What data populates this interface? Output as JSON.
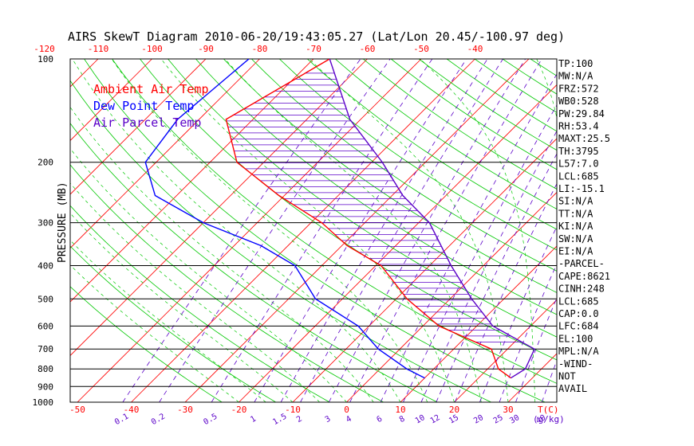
{
  "chart_data": {
    "type": "line",
    "title": "AIRS SkewT Diagram 2010-06-20/19:43:05.27 (Lat/Lon 20.45/-100.97 deg)",
    "ylabel": "PRESSURE (MB)",
    "xlabel_right": "T(C)",
    "mixing_ratio_unit_label": "(g/kg)",
    "y_scale": "log",
    "ylim": [
      1000,
      100
    ],
    "xlim_bottom": [
      -50,
      30
    ],
    "top_ticks": [
      "-120",
      "-110",
      "-100",
      "-90",
      "-80",
      "-70",
      "-60",
      "-50",
      "-40"
    ],
    "top_tick_values": [
      -120,
      -110,
      -100,
      -90,
      -80,
      -70,
      -60,
      -50,
      -40
    ],
    "bottom_ticks": [
      "-50",
      "-40",
      "-30",
      "-20",
      "-10",
      "0",
      "10",
      "20",
      "30"
    ],
    "bottom_tick_values": [
      -50,
      -40,
      -30,
      -20,
      -10,
      0,
      10,
      20,
      30
    ],
    "pressure_levels": [
      "100",
      "200",
      "300",
      "400",
      "500",
      "600",
      "700",
      "800",
      "900",
      "1000"
    ],
    "pressure_level_values": [
      100,
      200,
      300,
      400,
      500,
      600,
      700,
      800,
      900,
      1000
    ],
    "mixing_ratio_labels": [
      "0.1",
      "0.2",
      "0.5",
      "1",
      "1.5",
      "2",
      "3",
      "4",
      "6",
      "8",
      "10",
      "12",
      "15",
      "20",
      "25",
      "30",
      "40"
    ],
    "mixing_ratio_values": [
      0.1,
      0.2,
      0.5,
      1,
      1.5,
      2,
      3,
      4,
      6,
      8,
      10,
      12,
      15,
      20,
      25,
      30,
      40
    ],
    "legend": [
      {
        "label": "Ambient Air Temp",
        "color": "#ff0000"
      },
      {
        "label": "Dew Point Temp",
        "color": "#0000ff"
      },
      {
        "label": "Air Parcel Temp",
        "color": "#5a00c8"
      }
    ],
    "series": [
      {
        "name": "Ambient Air Temp",
        "color": "#ff0000",
        "points": [
          [
            100,
            -67
          ],
          [
            150,
            -75
          ],
          [
            200,
            -65
          ],
          [
            250,
            -51
          ],
          [
            300,
            -38
          ],
          [
            350,
            -29
          ],
          [
            400,
            -19
          ],
          [
            500,
            -8
          ],
          [
            600,
            3
          ],
          [
            700,
            17
          ],
          [
            800,
            22
          ],
          [
            850,
            26
          ]
        ]
      },
      {
        "name": "Dew Point Temp",
        "color": "#0000ff",
        "points": [
          [
            100,
            -82
          ],
          [
            150,
            -84
          ],
          [
            200,
            -82
          ],
          [
            250,
            -74
          ],
          [
            300,
            -60
          ],
          [
            350,
            -45
          ],
          [
            400,
            -35
          ],
          [
            500,
            -25
          ],
          [
            600,
            -12
          ],
          [
            700,
            -4
          ],
          [
            800,
            5
          ],
          [
            850,
            10
          ]
        ]
      },
      {
        "name": "Air Parcel Temp",
        "color": "#5a00c8",
        "points": [
          [
            100,
            -67
          ],
          [
            150,
            -52
          ],
          [
            200,
            -38
          ],
          [
            250,
            -28
          ],
          [
            300,
            -18
          ],
          [
            400,
            -6
          ],
          [
            500,
            4
          ],
          [
            600,
            13
          ],
          [
            700,
            25
          ],
          [
            800,
            27
          ],
          [
            850,
            26
          ]
        ]
      }
    ],
    "indices": [
      "TP:100",
      "MW:N/A",
      "FRZ:572",
      "WB0:528",
      "PW:29.84",
      "RH:53.4",
      "MAXT:25.5",
      "TH:3795",
      "L57:7.0",
      "LCL:685",
      "LI:-15.1",
      "SI:N/A",
      "TT:N/A",
      "KI:N/A",
      "SW:N/A",
      "EI:N/A",
      "-PARCEL-",
      "CAPE:8621",
      "CINH:248",
      "LCL:685",
      "CAP:0.0",
      "LFC:684",
      "EL:100",
      "MPL:N/A",
      "-WIND-",
      "NOT",
      "AVAIL"
    ],
    "colors": {
      "isotherm": "#ff0000",
      "dry_adiabat": "#00c800",
      "moist_adiabat": "#00c800",
      "mixing_ratio": "#5a00c8",
      "pressure_line": "#000000",
      "axis_text": "#000000",
      "tick_text_red": "#ff0000",
      "tick_text_purple": "#5a00c8"
    },
    "grid": true
  }
}
